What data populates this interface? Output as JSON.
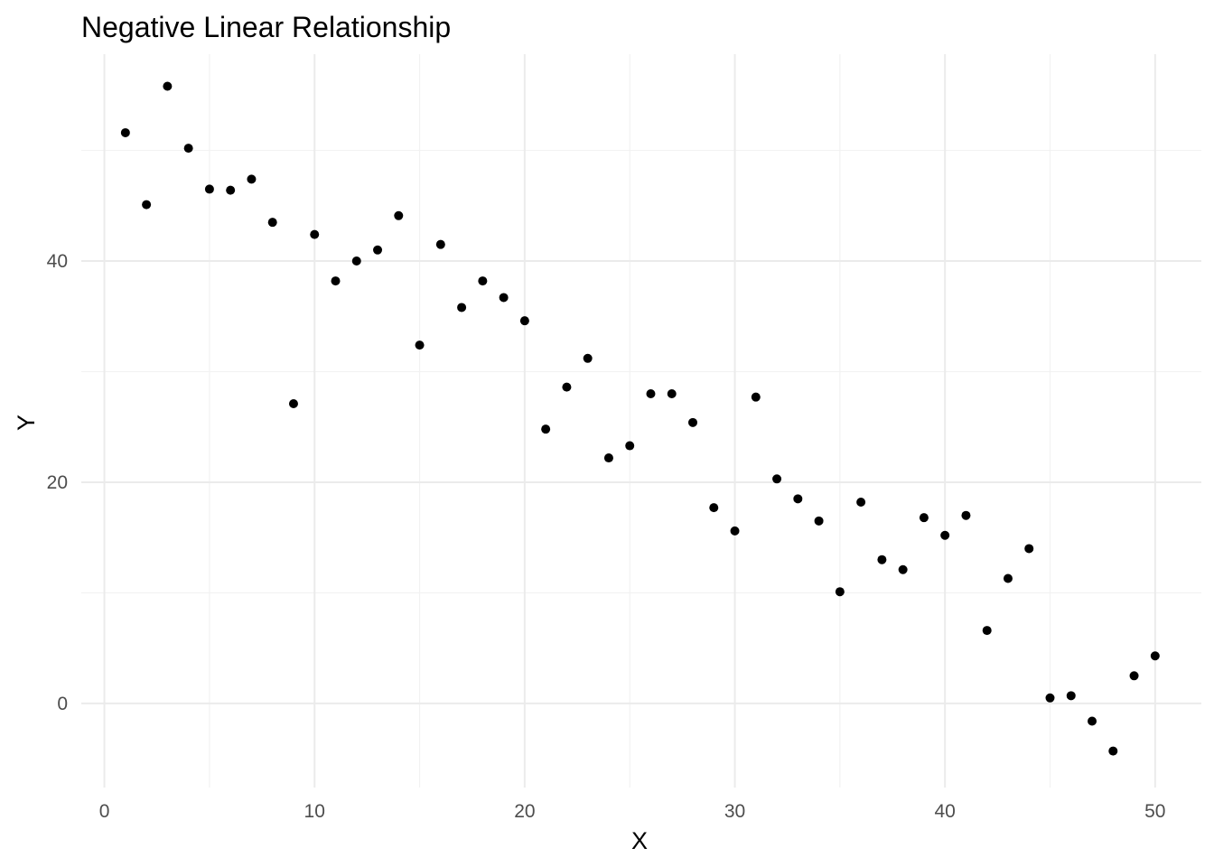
{
  "chart_data": {
    "type": "scatter",
    "title": "Negative Linear Relationship",
    "xlabel": "X",
    "ylabel": "Y",
    "xlim": [
      -1.1,
      52.2
    ],
    "ylim": [
      -7.6,
      58.7
    ],
    "x_ticks": [
      0,
      10,
      20,
      30,
      40,
      50
    ],
    "x_tick_labels": [
      "0",
      "10",
      "20",
      "30",
      "40",
      "50"
    ],
    "x_minor_ticks": [
      5,
      15,
      25,
      35,
      45
    ],
    "y_ticks": [
      0,
      20,
      40
    ],
    "y_tick_labels": [
      "0",
      "20",
      "40"
    ],
    "y_minor_ticks": [
      10,
      30,
      50
    ],
    "grid": true,
    "legend": "none",
    "point_color": "#000000",
    "series": [
      {
        "x": [
          1,
          2,
          3,
          4,
          5,
          6,
          7,
          8,
          9,
          10,
          11,
          12,
          13,
          14,
          15,
          16,
          17,
          18,
          19,
          20,
          21,
          22,
          23,
          24,
          25,
          26,
          27,
          28,
          29,
          30,
          31,
          32,
          33,
          34,
          35,
          36,
          37,
          38,
          39,
          40,
          41,
          42,
          43,
          44,
          45,
          46,
          47,
          48,
          49,
          50
        ],
        "y": [
          51.6,
          45.1,
          55.8,
          50.2,
          46.5,
          46.4,
          47.4,
          43.5,
          27.1,
          42.4,
          38.2,
          40.0,
          41.0,
          44.1,
          32.4,
          41.5,
          35.8,
          38.2,
          36.7,
          34.6,
          24.8,
          28.6,
          31.2,
          22.2,
          23.3,
          28.0,
          28.0,
          25.4,
          17.7,
          15.6,
          27.7,
          20.3,
          18.5,
          16.5,
          10.1,
          18.2,
          13.0,
          12.1,
          16.8,
          15.2,
          17.0,
          6.6,
          11.3,
          14.0,
          0.5,
          0.7,
          -1.6,
          -4.3,
          2.5,
          4.3
        ]
      }
    ]
  }
}
